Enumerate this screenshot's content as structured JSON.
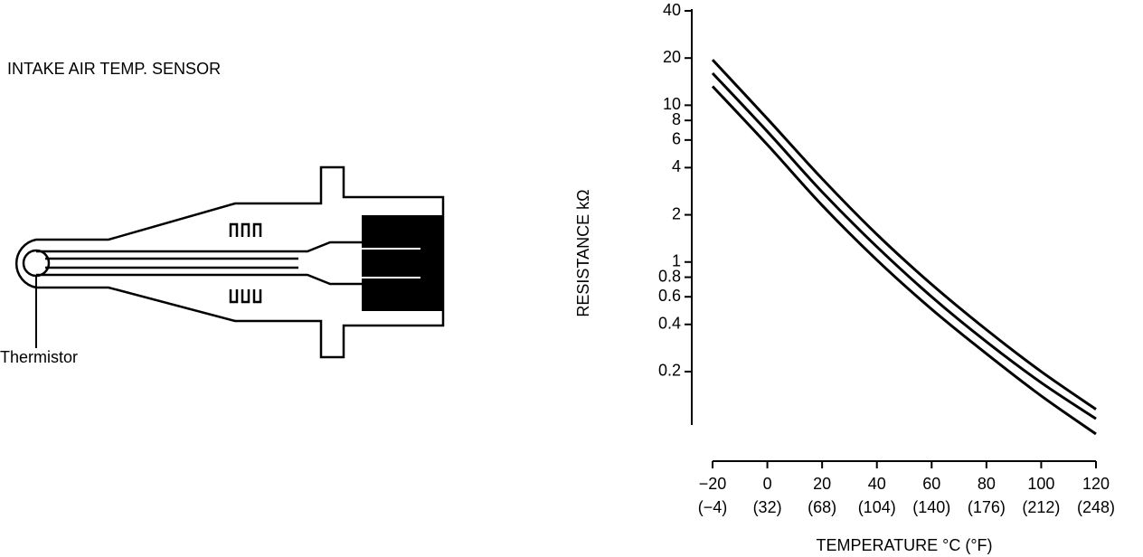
{
  "diagram": {
    "title": "INTAKE AIR TEMP. SENSOR",
    "label": "Thermistor"
  },
  "chart_data": {
    "type": "line",
    "log_y": true,
    "ylabel": "RESISTANCE kΩ",
    "xlabel": "TEMPERATURE °C (°F)",
    "x": [
      -20,
      0,
      20,
      40,
      60,
      80,
      100,
      120
    ],
    "series": [
      {
        "color": "#000000",
        "values": [
          19.5,
          8.2,
          3.4,
          1.5,
          0.72,
          0.37,
          0.2,
          0.115
        ]
      },
      {
        "color": "#000000",
        "values": [
          16,
          6.8,
          2.8,
          1.25,
          0.6,
          0.31,
          0.17,
          0.1
        ]
      },
      {
        "color": "#000000",
        "values": [
          13.2,
          5.6,
          2.3,
          1.03,
          0.5,
          0.26,
          0.14,
          0.08
        ]
      }
    ],
    "xlim": [
      -20,
      120
    ],
    "ylim": [
      0.07,
      40
    ],
    "xticks": [
      {
        "value": -20,
        "label": "−20"
      },
      0,
      20,
      40,
      60,
      80,
      100,
      120
    ],
    "xtick_sublabels": [
      "(−4)",
      "(32)",
      "(68)",
      "(104)",
      "(140)",
      "(176)",
      "(212)",
      "(248)"
    ],
    "yticks": [
      40,
      20,
      10,
      8,
      6,
      4,
      2,
      1,
      0.8,
      0.6,
      0.4,
      0.2
    ]
  }
}
